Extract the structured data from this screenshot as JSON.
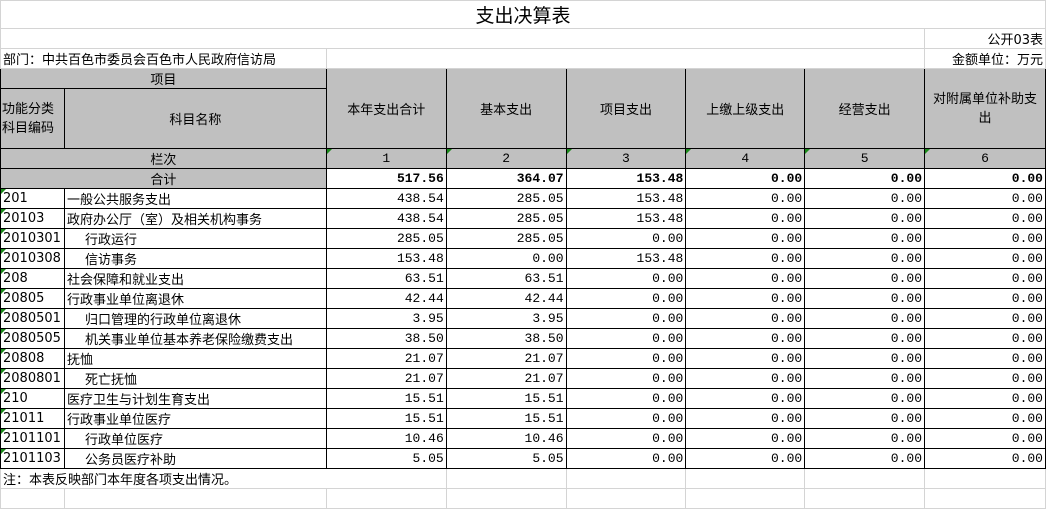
{
  "title": "支出决算表",
  "form_no": "公开03表",
  "department": "部门：中共百色市委员会百色市人民政府信访局",
  "unit": "金额单位：万元",
  "header": {
    "project": "项目",
    "code": "功能分类科目编码",
    "name": "科目名称",
    "columns": [
      "本年支出合计",
      "基本支出",
      "项目支出",
      "上缴上级支出",
      "经营支出",
      "对附属单位补助支出"
    ],
    "row_index_label": "栏次",
    "row_index": [
      "1",
      "2",
      "3",
      "4",
      "5",
      "6"
    ]
  },
  "total": {
    "label": "合计",
    "values": [
      "517.56",
      "364.07",
      "153.48",
      "0.00",
      "0.00",
      "0.00"
    ]
  },
  "rows": [
    {
      "code": "201",
      "name": "一般公共服务支出",
      "indent": false,
      "values": [
        "438.54",
        "285.05",
        "153.48",
        "0.00",
        "0.00",
        "0.00"
      ]
    },
    {
      "code": "20103",
      "name": "政府办公厅（室）及相关机构事务",
      "indent": false,
      "values": [
        "438.54",
        "285.05",
        "153.48",
        "0.00",
        "0.00",
        "0.00"
      ]
    },
    {
      "code": "2010301",
      "name": "行政运行",
      "indent": true,
      "values": [
        "285.05",
        "285.05",
        "0.00",
        "0.00",
        "0.00",
        "0.00"
      ]
    },
    {
      "code": "2010308",
      "name": "信访事务",
      "indent": true,
      "values": [
        "153.48",
        "0.00",
        "153.48",
        "0.00",
        "0.00",
        "0.00"
      ]
    },
    {
      "code": "208",
      "name": "社会保障和就业支出",
      "indent": false,
      "values": [
        "63.51",
        "63.51",
        "0.00",
        "0.00",
        "0.00",
        "0.00"
      ]
    },
    {
      "code": "20805",
      "name": "行政事业单位离退休",
      "indent": false,
      "values": [
        "42.44",
        "42.44",
        "0.00",
        "0.00",
        "0.00",
        "0.00"
      ]
    },
    {
      "code": "2080501",
      "name": "归口管理的行政单位离退休",
      "indent": true,
      "values": [
        "3.95",
        "3.95",
        "0.00",
        "0.00",
        "0.00",
        "0.00"
      ]
    },
    {
      "code": "2080505",
      "name": "机关事业单位基本养老保险缴费支出",
      "indent": true,
      "values": [
        "38.50",
        "38.50",
        "0.00",
        "0.00",
        "0.00",
        "0.00"
      ]
    },
    {
      "code": "20808",
      "name": "抚恤",
      "indent": false,
      "values": [
        "21.07",
        "21.07",
        "0.00",
        "0.00",
        "0.00",
        "0.00"
      ]
    },
    {
      "code": "2080801",
      "name": "死亡抚恤",
      "indent": true,
      "values": [
        "21.07",
        "21.07",
        "0.00",
        "0.00",
        "0.00",
        "0.00"
      ]
    },
    {
      "code": "210",
      "name": "医疗卫生与计划生育支出",
      "indent": false,
      "values": [
        "15.51",
        "15.51",
        "0.00",
        "0.00",
        "0.00",
        "0.00"
      ]
    },
    {
      "code": "21011",
      "name": "行政事业单位医疗",
      "indent": false,
      "values": [
        "15.51",
        "15.51",
        "0.00",
        "0.00",
        "0.00",
        "0.00"
      ]
    },
    {
      "code": "2101101",
      "name": "行政单位医疗",
      "indent": true,
      "values": [
        "10.46",
        "10.46",
        "0.00",
        "0.00",
        "0.00",
        "0.00"
      ]
    },
    {
      "code": "2101103",
      "name": "公务员医疗补助",
      "indent": true,
      "values": [
        "5.05",
        "5.05",
        "0.00",
        "0.00",
        "0.00",
        "0.00"
      ]
    }
  ],
  "note": "注：本表反映部门本年度各项支出情况。"
}
